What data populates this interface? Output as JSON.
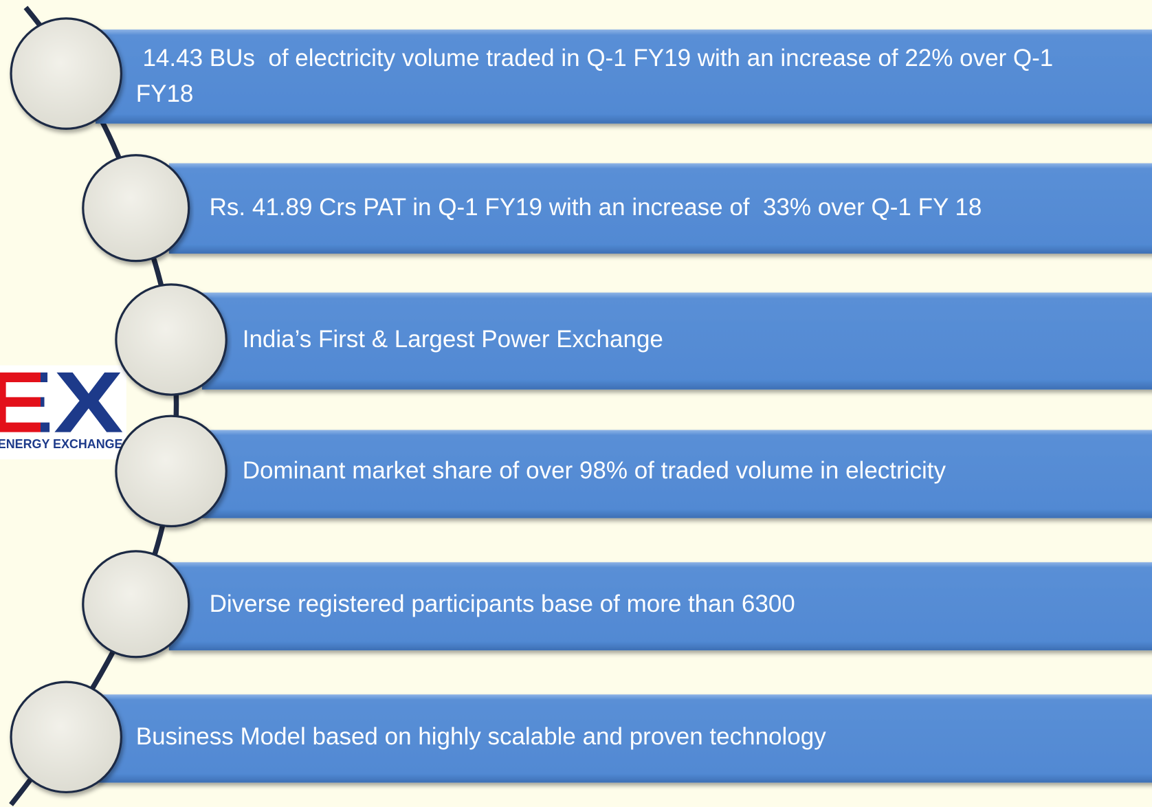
{
  "logo": {
    "mark": "EX",
    "tagline": "ENERGY EXCHANGE"
  },
  "items": [
    " 14.43 BUs  of electricity volume traded in Q-1 FY19 with an increase of 22% over Q-1 FY18",
    "Rs. 41.89 Crs PAT in Q-1 FY19 with an increase of  33% over Q-1 FY 18",
    "India’s First & Largest Power Exchange",
    "Dominant market share of over 98% of traded volume in electricity",
    "Diverse registered participants base of more than 6300",
    "Business Model based on highly scalable and proven technology"
  ]
}
